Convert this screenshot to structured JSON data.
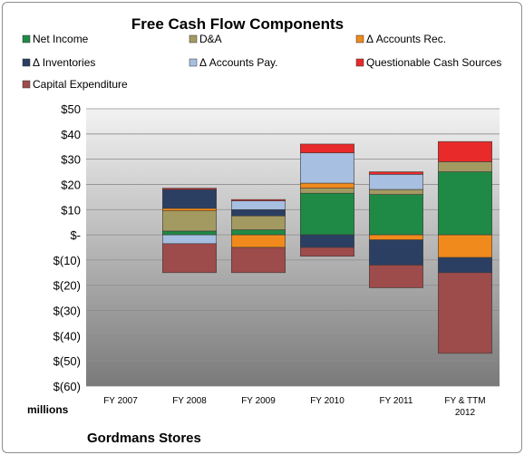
{
  "chart_data": {
    "type": "bar",
    "stacked": true,
    "title": "Free Cash Flow Components",
    "y_unit_label": "millions",
    "footer_label": "Gordmans Stores",
    "ylim": [
      -60,
      50
    ],
    "y_ticks": [
      "$50",
      "$40",
      "$30",
      "$20",
      "$10",
      "$-",
      "$(10)",
      "$(20)",
      "$(30)",
      "$(40)",
      "$(50)",
      "$(60)"
    ],
    "y_tick_values": [
      50,
      40,
      30,
      20,
      10,
      0,
      -10,
      -20,
      -30,
      -40,
      -50,
      -60
    ],
    "legend_position": "top",
    "categories": [
      [
        "FY 2007"
      ],
      [
        "FY 2008"
      ],
      [
        "FY 2009"
      ],
      [
        "FY 2010"
      ],
      [
        "FY 2011"
      ],
      [
        "FY & TTM",
        "2012"
      ]
    ],
    "series": [
      {
        "name": "Net Income",
        "color": "#1f8a45",
        "values": [
          0,
          1.5,
          2.0,
          16.5,
          16.0,
          25.0
        ]
      },
      {
        "name": "D&A",
        "color": "#a39a62",
        "values": [
          0,
          8.0,
          5.5,
          2.0,
          2.0,
          4.0
        ]
      },
      {
        "name": "Δ Accounts Rec.",
        "color": "#f08a1c",
        "values": [
          0,
          1.0,
          -5.0,
          2.0,
          -2.0,
          -9.0
        ]
      },
      {
        "name": "Δ Inventories",
        "color": "#2b3f63",
        "values": [
          0,
          7.5,
          2.5,
          -5.0,
          -10.0,
          -6.0
        ]
      },
      {
        "name": "Δ Accounts Pay.",
        "color": "#a7bfe0",
        "values": [
          0,
          -3.5,
          3.5,
          12.0,
          6.0,
          0
        ]
      },
      {
        "name": "Questionable Cash Sources",
        "color": "#e82a2a",
        "values": [
          0,
          0.5,
          0.5,
          3.5,
          1.0,
          8.0
        ]
      },
      {
        "name": "Capital Expenditure",
        "color": "#9e4b4b",
        "values": [
          0,
          -11.5,
          -10.0,
          -3.5,
          -9.0,
          -32.0
        ]
      }
    ]
  }
}
